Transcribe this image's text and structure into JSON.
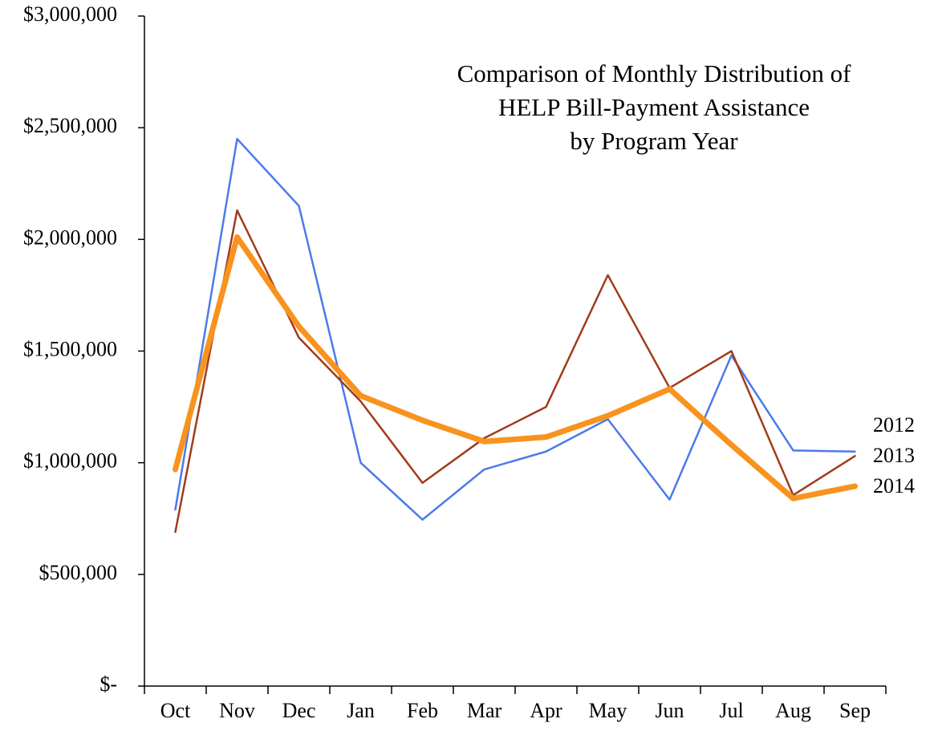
{
  "chart_data": {
    "type": "line",
    "title": [
      "Comparison of Monthly Distribution of",
      "HELP Bill-Payment Assistance",
      "by Program Year"
    ],
    "categories": [
      "Oct",
      "Nov",
      "Dec",
      "Jan",
      "Feb",
      "Mar",
      "Apr",
      "May",
      "Jun",
      "Jul",
      "Aug",
      "Sep"
    ],
    "series": [
      {
        "name": "2012",
        "color": "#4a7bea",
        "width": 2.5,
        "values": [
          790000,
          2450000,
          2150000,
          1000000,
          745000,
          970000,
          1050000,
          1195000,
          835000,
          1480000,
          1055000,
          1050000
        ]
      },
      {
        "name": "2013",
        "color": "#a03c1c",
        "width": 2.5,
        "values": [
          690000,
          2130000,
          1560000,
          1275000,
          910000,
          1110000,
          1250000,
          1840000,
          1335000,
          1500000,
          855000,
          1030000
        ]
      },
      {
        "name": "2014",
        "color": "#f7931e",
        "width": 7,
        "values": [
          970000,
          2010000,
          1610000,
          1300000,
          1190000,
          1095000,
          1115000,
          1210000,
          1330000,
          1080000,
          840000,
          895000
        ]
      }
    ],
    "ylim": [
      0,
      3000000
    ],
    "yticks": [
      {
        "value": 0,
        "label": "$-"
      },
      {
        "value": 500000,
        "label": "$500,000"
      },
      {
        "value": 1000000,
        "label": "$1,000,000"
      },
      {
        "value": 1500000,
        "label": "$1,500,000"
      },
      {
        "value": 2000000,
        "label": "$2,000,000"
      },
      {
        "value": 2500000,
        "label": "$2,500,000"
      },
      {
        "value": 3000000,
        "label": "$3,000,000"
      }
    ],
    "grid": false
  }
}
